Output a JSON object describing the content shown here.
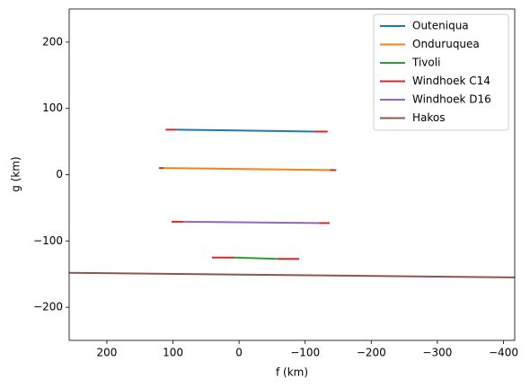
{
  "chart_data": {
    "type": "line",
    "xlabel": "f (km)",
    "ylabel": "g (km)",
    "xlim": [
      257,
      -417
    ],
    "ylim": [
      -250,
      250
    ],
    "xticks": [
      200,
      100,
      0,
      {
        "value": -100,
        "label": "−100"
      },
      {
        "value": -200,
        "label": "−200"
      },
      {
        "value": -300,
        "label": "−300"
      },
      {
        "value": -400,
        "label": "−400"
      }
    ],
    "yticks": [
      {
        "value": -200,
        "label": "−200"
      },
      {
        "value": -100,
        "label": "−100"
      },
      0,
      100,
      200
    ],
    "legend": "upper right",
    "series": [
      {
        "name": "Outeniqua",
        "color": "#1f77b4",
        "x": [
          95,
          -114
        ],
        "values": [
          68,
          65
        ]
      },
      {
        "name": "Onduruquea",
        "color": "#ff7f0e",
        "x": [
          114,
          -141
        ],
        "values": [
          10,
          7
        ]
      },
      {
        "name": "Tivoli",
        "color": "#2ca02c",
        "x": [
          7,
          -58
        ],
        "values": [
          -125,
          -127
        ]
      },
      {
        "name": "Windhoek C14",
        "color": "#d62728",
        "x": [
          111,
          95,
          null,
          -114,
          -134,
          null,
          121,
          114,
          null,
          -138,
          -147,
          null,
          102,
          84,
          null,
          -121,
          -137,
          null,
          41,
          7,
          null,
          -58,
          -91
        ],
        "values": [
          68,
          68,
          null,
          65,
          65,
          null,
          10,
          10,
          null,
          7,
          7,
          null,
          -71,
          -71,
          null,
          -73,
          -73,
          null,
          -125,
          -125,
          null,
          -127,
          -127
        ]
      },
      {
        "name": "Windhoek D16",
        "color": "#9467bd",
        "x": [
          84,
          -121
        ],
        "values": [
          -71,
          -73
        ]
      },
      {
        "name": "Hakos",
        "color": "#8c564b",
        "x": [
          257,
          -417
        ],
        "values": [
          -148,
          -155
        ]
      }
    ],
    "draw_order": [
      0,
      1,
      2,
      4,
      5,
      3
    ]
  }
}
